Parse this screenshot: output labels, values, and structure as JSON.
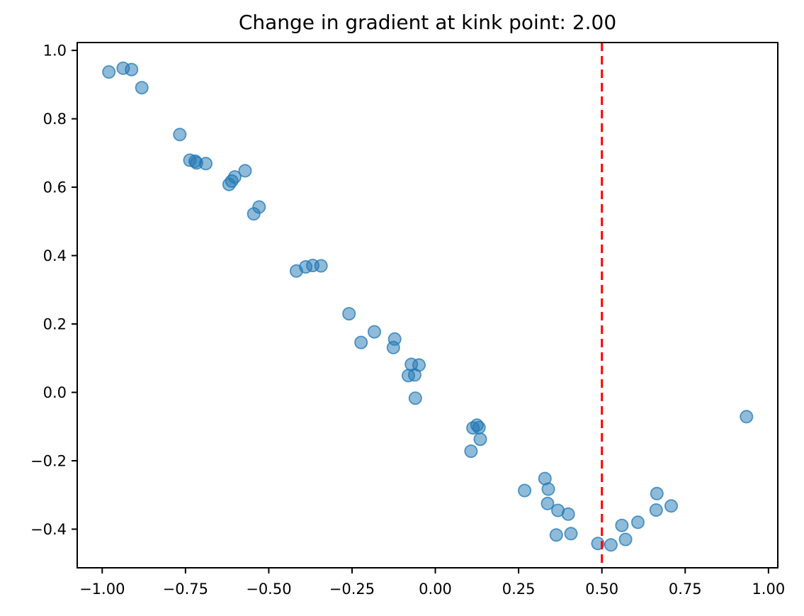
{
  "chart_data": {
    "type": "scatter",
    "title": "Change in gradient at kink point: 2.00",
    "xlabel": "",
    "ylabel": "",
    "xlim": [
      -1.075,
      1.028
    ],
    "ylim": [
      -0.513,
      1.023
    ],
    "grid": false,
    "legend": null,
    "x_ticks": [
      -1.0,
      -0.75,
      -0.5,
      -0.25,
      0.0,
      0.25,
      0.5,
      0.75,
      1.0
    ],
    "x_tick_labels": [
      "−1.00",
      "−0.75",
      "−0.50",
      "−0.25",
      "0.00",
      "0.25",
      "0.50",
      "0.75",
      "1.00"
    ],
    "y_ticks": [
      1.0,
      0.8,
      0.6,
      0.4,
      0.2,
      0.0,
      -0.2,
      -0.4
    ],
    "y_tick_labels": [
      "1.0",
      "0.8",
      "0.6",
      "0.4",
      "0.2",
      "0.0",
      "−0.2",
      "−0.4"
    ],
    "kink_line": {
      "x": 0.5,
      "color": "#ff0000",
      "style": "dashed",
      "label": "kink-point-vline"
    },
    "axis_color": "#000000",
    "background": "#ffffff",
    "series": [
      {
        "name": "scatter-points",
        "color": "#1f77b4",
        "alpha": 0.5,
        "marker": "circle",
        "points": [
          [
            -0.98,
            0.937
          ],
          [
            -0.937,
            0.948
          ],
          [
            -0.912,
            0.944
          ],
          [
            -0.881,
            0.891
          ],
          [
            -0.767,
            0.754
          ],
          [
            -0.737,
            0.679
          ],
          [
            -0.721,
            0.676
          ],
          [
            -0.717,
            0.671
          ],
          [
            -0.689,
            0.669
          ],
          [
            -0.571,
            0.648
          ],
          [
            -0.602,
            0.63
          ],
          [
            -0.611,
            0.618
          ],
          [
            -0.619,
            0.608
          ],
          [
            -0.529,
            0.542
          ],
          [
            -0.545,
            0.522
          ],
          [
            -0.417,
            0.355
          ],
          [
            -0.389,
            0.367
          ],
          [
            -0.368,
            0.371
          ],
          [
            -0.343,
            0.37
          ],
          [
            -0.259,
            0.23
          ],
          [
            -0.223,
            0.146
          ],
          [
            -0.183,
            0.177
          ],
          [
            -0.122,
            0.156
          ],
          [
            -0.126,
            0.131
          ],
          [
            -0.072,
            0.082
          ],
          [
            -0.049,
            0.08
          ],
          [
            -0.081,
            0.049
          ],
          [
            -0.062,
            0.051
          ],
          [
            -0.06,
            -0.017
          ],
          [
            0.113,
            -0.104
          ],
          [
            0.125,
            -0.096
          ],
          [
            0.131,
            -0.103
          ],
          [
            0.135,
            -0.137
          ],
          [
            0.107,
            -0.172
          ],
          [
            0.268,
            -0.287
          ],
          [
            0.329,
            -0.252
          ],
          [
            0.339,
            -0.283
          ],
          [
            0.337,
            -0.325
          ],
          [
            0.368,
            -0.345
          ],
          [
            0.399,
            -0.356
          ],
          [
            0.363,
            -0.417
          ],
          [
            0.407,
            -0.413
          ],
          [
            0.488,
            -0.442
          ],
          [
            0.527,
            -0.446
          ],
          [
            0.56,
            -0.389
          ],
          [
            0.608,
            -0.38
          ],
          [
            0.571,
            -0.43
          ],
          [
            0.665,
            -0.296
          ],
          [
            0.663,
            -0.344
          ],
          [
            0.708,
            -0.332
          ],
          [
            0.934,
            -0.071
          ]
        ]
      }
    ]
  }
}
